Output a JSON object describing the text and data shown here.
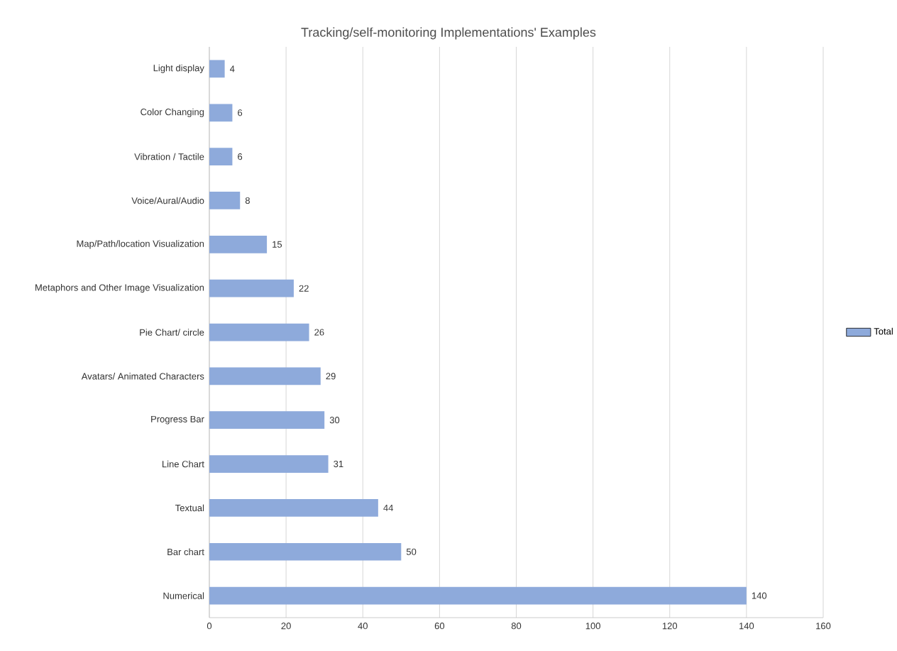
{
  "chart_data": {
    "type": "bar",
    "orientation": "horizontal",
    "title": "Tracking/self-monitoring Implementations' Examples",
    "categories": [
      "Light display",
      "Color Changing",
      "Vibration / Tactile",
      "Voice/Aural/Audio",
      "Map/Path/location Visualization",
      "Metaphors and Other Image Visualization",
      "Pie Chart/ circle",
      "Avatars/ Animated Characters",
      "Progress Bar",
      "Line Chart",
      "Textual",
      "Bar chart",
      "Numerical"
    ],
    "series": [
      {
        "name": "Total",
        "color": "#8eaadb",
        "values": [
          4,
          6,
          6,
          8,
          15,
          22,
          26,
          29,
          30,
          31,
          44,
          50,
          140
        ]
      }
    ],
    "xlim": [
      0,
      160
    ],
    "xticks": [
      0,
      20,
      40,
      60,
      80,
      100,
      120,
      140,
      160
    ],
    "grid": "x",
    "legend": "right",
    "data_labels": true
  }
}
